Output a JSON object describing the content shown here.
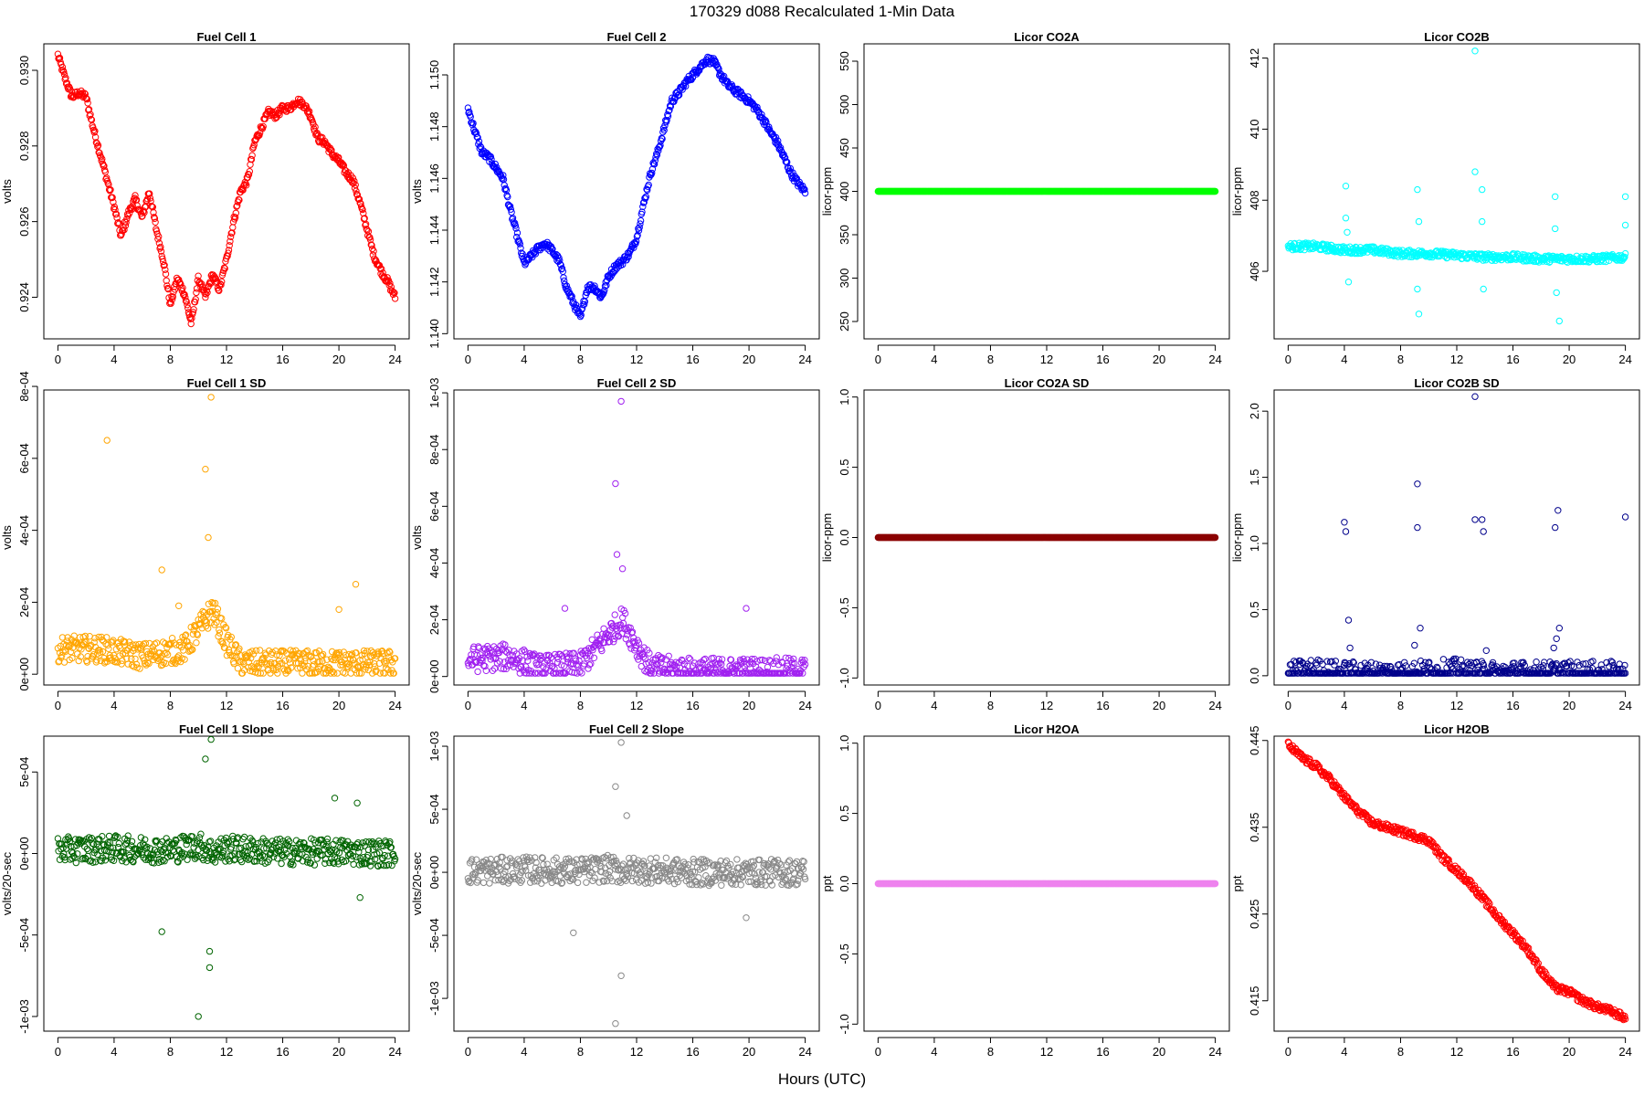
{
  "figure": {
    "title": "170329   d088   Recalculated 1-Min Data",
    "xlabel": "Hours (UTC)"
  },
  "chart_data": [
    {
      "type": "scatter",
      "title": "Fuel Cell 1",
      "ylabel": "volts",
      "color": "#ff0000",
      "xlim": [
        -1,
        25
      ],
      "ylim": [
        0.9229,
        0.9307
      ],
      "yticks": [
        0.924,
        0.926,
        0.928,
        0.93
      ],
      "ytick_labels": [
        "0.924",
        "0.926",
        "0.928",
        "0.930"
      ],
      "xticks": [
        0,
        4,
        8,
        12,
        16,
        20,
        24
      ],
      "series": [
        {
          "x": [
            0,
            0.5,
            1,
            1.5,
            2,
            2.5,
            3,
            3.5,
            4,
            4.5,
            5,
            5.5,
            6,
            6.5,
            7,
            7.5,
            8,
            8.5,
            9,
            9.5,
            10,
            10.5,
            11,
            11.5,
            12,
            12.5,
            13,
            13.5,
            14,
            14.5,
            15,
            15.5,
            16,
            16.5,
            17,
            17.5,
            18,
            18.5,
            19,
            19.5,
            20,
            20.5,
            21,
            21.5,
            22,
            22.5,
            23,
            23.5,
            24
          ],
          "y": [
            0.9304,
            0.9298,
            0.9293,
            0.9294,
            0.9293,
            0.9285,
            0.9278,
            0.9271,
            0.9264,
            0.9256,
            0.9262,
            0.9266,
            0.9261,
            0.9268,
            0.9258,
            0.925,
            0.9238,
            0.9245,
            0.9241,
            0.9233,
            0.9245,
            0.924,
            0.9246,
            0.9242,
            0.925,
            0.926,
            0.9268,
            0.9271,
            0.9281,
            0.9285,
            0.9289,
            0.9288,
            0.929,
            0.929,
            0.9292,
            0.9291,
            0.9288,
            0.9282,
            0.9281,
            0.9278,
            0.9276,
            0.9273,
            0.9271,
            0.9265,
            0.9258,
            0.9251,
            0.9247,
            0.9244,
            0.924
          ]
        }
      ]
    },
    {
      "type": "scatter",
      "title": "Fuel Cell 2",
      "ylabel": "volts",
      "color": "#0000ff",
      "xlim": [
        -1,
        25
      ],
      "ylim": [
        1.1398,
        1.1512
      ],
      "yticks": [
        1.14,
        1.142,
        1.144,
        1.146,
        1.148,
        1.15
      ],
      "ytick_labels": [
        "1.140",
        "1.142",
        "1.144",
        "1.146",
        "1.148",
        "1.150"
      ],
      "xticks": [
        0,
        4,
        8,
        12,
        16,
        20,
        24
      ],
      "series": [
        {
          "x": [
            0,
            0.5,
            1,
            1.5,
            2,
            2.5,
            3,
            3.5,
            4,
            4.5,
            5,
            5.5,
            6,
            6.5,
            7,
            7.5,
            8,
            8.5,
            9,
            9.5,
            10,
            10.5,
            11,
            11.5,
            12,
            12.5,
            13,
            13.5,
            14,
            14.5,
            15,
            15.5,
            16,
            16.5,
            17,
            17.5,
            18,
            18.5,
            19,
            19.5,
            20,
            20.5,
            21,
            21.5,
            22,
            22.5,
            23,
            23.5,
            24
          ],
          "y": [
            1.1487,
            1.1478,
            1.147,
            1.1468,
            1.1464,
            1.146,
            1.1448,
            1.1438,
            1.1427,
            1.143,
            1.1433,
            1.1435,
            1.1432,
            1.1428,
            1.1418,
            1.1412,
            1.1406,
            1.1418,
            1.1418,
            1.1414,
            1.1422,
            1.1426,
            1.1428,
            1.1431,
            1.1437,
            1.145,
            1.1462,
            1.147,
            1.148,
            1.149,
            1.1493,
            1.1497,
            1.15,
            1.1503,
            1.1506,
            1.1505,
            1.15,
            1.1496,
            1.1494,
            1.1492,
            1.149,
            1.1487,
            1.1483,
            1.1478,
            1.1474,
            1.1468,
            1.1462,
            1.1458,
            1.1455
          ]
        }
      ]
    },
    {
      "type": "scatter",
      "title": "Licor CO2A",
      "ylabel": "licor-ppm",
      "color": "#00ff00",
      "xlim": [
        -1,
        25
      ],
      "ylim": [
        230,
        570
      ],
      "yticks": [
        250,
        300,
        350,
        400,
        450,
        500,
        550
      ],
      "ytick_labels": [
        "250",
        "300",
        "350",
        "400",
        "450",
        "500",
        "550"
      ],
      "xticks": [
        0,
        4,
        8,
        12,
        16,
        20,
        24
      ],
      "series": [
        {
          "x": [
            0,
            24
          ],
          "y": [
            400,
            400
          ]
        }
      ]
    },
    {
      "type": "scatter",
      "title": "Licor CO2B",
      "ylabel": "licor-ppm",
      "color": "#00ffff",
      "xlim": [
        -1,
        25
      ],
      "ylim": [
        404.1,
        412.4
      ],
      "yticks": [
        406,
        408,
        410,
        412
      ],
      "ytick_labels": [
        "406",
        "408",
        "410",
        "412"
      ],
      "xticks": [
        0,
        4,
        8,
        12,
        16,
        20,
        24
      ],
      "series": [
        {
          "x": [
            0,
            2,
            4,
            6,
            8,
            10,
            12,
            14,
            16,
            18,
            20,
            22,
            24
          ],
          "y": [
            406.7,
            406.7,
            406.6,
            406.6,
            406.5,
            406.5,
            406.45,
            406.4,
            406.4,
            406.35,
            406.35,
            406.35,
            406.4
          ],
          "outliers": [
            [
              4.1,
              408.4
            ],
            [
              4.1,
              407.5
            ],
            [
              4.2,
              407.1
            ],
            [
              4.3,
              405.7
            ],
            [
              9.2,
              408.3
            ],
            [
              9.3,
              407.4
            ],
            [
              9.2,
              405.5
            ],
            [
              9.3,
              404.8
            ],
            [
              13.3,
              412.2
            ],
            [
              13.3,
              408.8
            ],
            [
              13.8,
              408.3
            ],
            [
              13.8,
              407.4
            ],
            [
              13.9,
              405.5
            ],
            [
              19.0,
              408.1
            ],
            [
              19.0,
              407.2
            ],
            [
              19.1,
              405.4
            ],
            [
              19.3,
              404.6
            ],
            [
              24.0,
              408.1
            ],
            [
              24.0,
              407.3
            ]
          ]
        }
      ]
    },
    {
      "type": "scatter",
      "title": "Fuel Cell 1 SD",
      "ylabel": "volts",
      "color": "#ffa500",
      "xlim": [
        -1,
        25
      ],
      "ylim": [
        -3e-05,
        0.00079
      ],
      "yticks": [
        0,
        0.0002,
        0.0004,
        0.0006,
        0.0008
      ],
      "ytick_labels": [
        "0e+00",
        "2e-04",
        "4e-04",
        "6e-04",
        "8e-04"
      ],
      "xticks": [
        0,
        4,
        8,
        12,
        16,
        20,
        24
      ],
      "series": [
        {
          "x": [
            0,
            3,
            6,
            9,
            10.5,
            11,
            12,
            13,
            16,
            20,
            24
          ],
          "y": [
            7e-05,
            7e-05,
            5e-05,
            7e-05,
            0.00015,
            0.00018,
            9e-05,
            3e-05,
            3e-05,
            3e-05,
            3e-05
          ],
          "outliers": [
            [
              3.5,
              0.00065
            ],
            [
              10.9,
              0.00077
            ],
            [
              10.5,
              0.00057
            ],
            [
              10.7,
              0.00038
            ],
            [
              7.4,
              0.00029
            ],
            [
              21.2,
              0.00025
            ],
            [
              20.0,
              0.00018
            ],
            [
              8.6,
              0.00019
            ]
          ]
        }
      ]
    },
    {
      "type": "scatter",
      "title": "Fuel Cell 2 SD",
      "ylabel": "volts",
      "color": "#a020f0",
      "xlim": [
        -1,
        25
      ],
      "ylim": [
        -3e-05,
        0.00101
      ],
      "yticks": [
        0,
        0.0002,
        0.0004,
        0.0006,
        0.0008,
        0.001
      ],
      "ytick_labels": [
        "0e+00",
        "2e-04",
        "4e-04",
        "6e-04",
        "8e-04",
        "1e-03"
      ],
      "xticks": [
        0,
        4,
        8,
        12,
        16,
        20,
        24
      ],
      "series": [
        {
          "x": [
            0,
            3,
            5,
            8,
            10,
            11,
            12,
            13,
            16,
            20,
            24
          ],
          "y": [
            6e-05,
            7e-05,
            3e-05,
            4e-05,
            0.00015,
            0.0002,
            0.00011,
            3e-05,
            2e-05,
            2e-05,
            2e-05
          ],
          "outliers": [
            [
              10.9,
              0.00097
            ],
            [
              10.5,
              0.00068
            ],
            [
              10.6,
              0.00043
            ],
            [
              11.0,
              0.00038
            ],
            [
              19.8,
              0.00024
            ],
            [
              6.9,
              0.00024
            ]
          ]
        }
      ]
    },
    {
      "type": "scatter",
      "title": "Licor CO2A SD",
      "ylabel": "licor-ppm",
      "color": "#8b0000",
      "xlim": [
        -1,
        25
      ],
      "ylim": [
        -1.05,
        1.05
      ],
      "yticks": [
        -1.0,
        -0.5,
        0.0,
        0.5,
        1.0
      ],
      "ytick_labels": [
        "-1.0",
        "-0.5",
        "0.0",
        "0.5",
        "1.0"
      ],
      "xticks": [
        0,
        4,
        8,
        12,
        16,
        20,
        24
      ],
      "series": [
        {
          "x": [
            0,
            24
          ],
          "y": [
            0,
            0
          ]
        }
      ]
    },
    {
      "type": "scatter",
      "title": "Licor CO2B SD",
      "ylabel": "licor-ppm",
      "color": "#00008b",
      "xlim": [
        -1,
        25
      ],
      "ylim": [
        -0.07,
        2.16
      ],
      "yticks": [
        0.0,
        0.5,
        1.0,
        1.5,
        2.0
      ],
      "ytick_labels": [
        "0.0",
        "0.5",
        "1.0",
        "1.5",
        "2.0"
      ],
      "xticks": [
        0,
        4,
        8,
        12,
        16,
        20,
        24
      ],
      "series": [
        {
          "x": [
            0,
            2,
            4,
            8,
            12,
            13,
            16,
            20,
            24
          ],
          "y": [
            0.01,
            0.03,
            0.01,
            0.01,
            0.03,
            0.01,
            0.01,
            0.01,
            0.01
          ],
          "outliers": [
            [
              4.0,
              1.16
            ],
            [
              4.1,
              1.09
            ],
            [
              4.3,
              0.42
            ],
            [
              4.4,
              0.21
            ],
            [
              9.2,
              1.45
            ],
            [
              9.2,
              1.12
            ],
            [
              9.4,
              0.36
            ],
            [
              9.0,
              0.23
            ],
            [
              13.3,
              2.11
            ],
            [
              13.3,
              1.18
            ],
            [
              13.8,
              1.18
            ],
            [
              13.9,
              1.09
            ],
            [
              14.1,
              0.19
            ],
            [
              13.4,
              0.1
            ],
            [
              19.0,
              1.12
            ],
            [
              19.2,
              1.25
            ],
            [
              19.3,
              0.36
            ],
            [
              19.1,
              0.28
            ],
            [
              18.9,
              0.21
            ],
            [
              24.0,
              1.2
            ]
          ]
        }
      ]
    },
    {
      "type": "scatter",
      "title": "Fuel Cell 1 Slope",
      "ylabel": "volts/20-sec",
      "color": "#006400",
      "xlim": [
        -1,
        25
      ],
      "ylim": [
        -0.00109,
        0.00072
      ],
      "yticks": [
        -0.001,
        -0.0005,
        0,
        0.0005
      ],
      "ytick_labels": [
        "-1e-03",
        "-5e-04",
        "0e+00",
        "5e-04"
      ],
      "xticks": [
        0,
        4,
        8,
        12,
        16,
        20,
        24
      ],
      "series": [
        {
          "x": [
            0,
            4,
            8,
            10,
            11,
            12,
            16,
            20,
            24
          ],
          "y": [
            2e-05,
            3e-05,
            2e-05,
            5e-05,
            1e-05,
            3e-05,
            1e-05,
            1e-05,
            0.0
          ],
          "outliers": [
            [
              10.9,
              0.0007
            ],
            [
              10.5,
              0.00058
            ],
            [
              10.0,
              -0.001
            ],
            [
              10.8,
              -0.0007
            ],
            [
              10.8,
              -0.0006
            ],
            [
              7.4,
              -0.00048
            ],
            [
              19.7,
              0.00034
            ],
            [
              21.3,
              0.00031
            ],
            [
              21.5,
              -0.00027
            ]
          ]
        }
      ]
    },
    {
      "type": "scatter",
      "title": "Fuel Cell 2 Slope",
      "ylabel": "volts/20-sec",
      "color": "#888888",
      "xlim": [
        -1,
        25
      ],
      "ylim": [
        -0.00126,
        0.00108
      ],
      "yticks": [
        -0.001,
        -0.0005,
        0,
        0.0005,
        0.001
      ],
      "ytick_labels": [
        "-1e-03",
        "-5e-04",
        "0e+00",
        "5e-04",
        "1e-03"
      ],
      "xticks": [
        0,
        4,
        8,
        12,
        16,
        20,
        24
      ],
      "series": [
        {
          "x": [
            0,
            4,
            8,
            10,
            11,
            12,
            16,
            20,
            24
          ],
          "y": [
            1e-05,
            2e-05,
            1e-05,
            3e-05,
            1e-05,
            2e-05,
            0.0,
            0.0,
            0.0
          ],
          "outliers": [
            [
              10.9,
              0.00103
            ],
            [
              10.5,
              0.00068
            ],
            [
              10.5,
              -0.0012
            ],
            [
              10.9,
              -0.00082
            ],
            [
              7.5,
              -0.00048
            ],
            [
              19.8,
              -0.00036
            ],
            [
              11.3,
              0.00045
            ]
          ]
        }
      ]
    },
    {
      "type": "scatter",
      "title": "Licor H2OA",
      "ylabel": "ppt",
      "color": "#ee82ee",
      "xlim": [
        -1,
        25
      ],
      "ylim": [
        -1.05,
        1.05
      ],
      "yticks": [
        -1.0,
        -0.5,
        0.0,
        0.5,
        1.0
      ],
      "ytick_labels": [
        "-1.0",
        "-0.5",
        "0.0",
        "0.5",
        "1.0"
      ],
      "xticks": [
        0,
        4,
        8,
        12,
        16,
        20,
        24
      ],
      "series": [
        {
          "x": [
            0,
            24
          ],
          "y": [
            0,
            0
          ]
        }
      ]
    },
    {
      "type": "scatter",
      "title": "Licor H2OB",
      "ylabel": "ppt",
      "color": "#ff0000",
      "xlim": [
        -1,
        25
      ],
      "ylim": [
        0.4115,
        0.4455
      ],
      "yticks": [
        0.415,
        0.425,
        0.435,
        0.445
      ],
      "ytick_labels": [
        "0.415",
        "0.425",
        "0.435",
        "0.445"
      ],
      "xticks": [
        0,
        4,
        8,
        12,
        16,
        20,
        24
      ],
      "series": [
        {
          "x": [
            0,
            1,
            2,
            3,
            4,
            5,
            6,
            7,
            8,
            9,
            10,
            11,
            12,
            13,
            14,
            15,
            16,
            17,
            18,
            19,
            20,
            21,
            22,
            23,
            24
          ],
          "y": [
            0.4445,
            0.443,
            0.442,
            0.4405,
            0.4385,
            0.4368,
            0.4355,
            0.435,
            0.4345,
            0.434,
            0.4335,
            0.4315,
            0.43,
            0.4285,
            0.4265,
            0.4245,
            0.4228,
            0.421,
            0.4185,
            0.4165,
            0.416,
            0.415,
            0.4143,
            0.4138,
            0.413
          ]
        }
      ]
    }
  ]
}
